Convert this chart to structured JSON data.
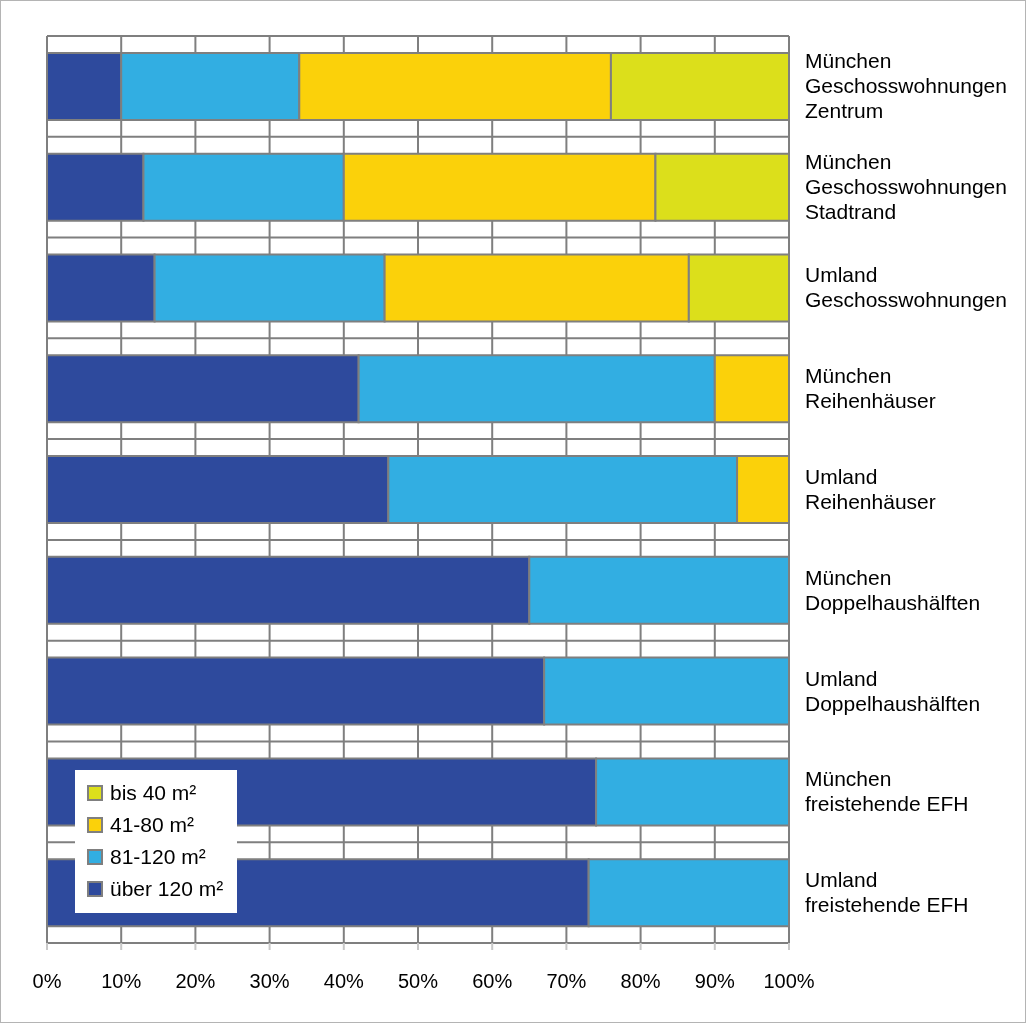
{
  "chart_data": {
    "type": "bar",
    "orientation": "horizontal",
    "stacked": true,
    "categories": [
      "München\nGeschosswohnungen\nZentrum",
      "München\nGeschosswohnungen\nStadtrand",
      "Umland\nGeschosswohnungen",
      "München\nReihenhäuser",
      "Umland\nReihenhäuser",
      "München\nDoppelhaushälften",
      "Umland\nDoppelhaushälften",
      "München\nfreistehende EFH",
      "Umland\nfreistehende EFH"
    ],
    "series": [
      {
        "name": "über 120 m²",
        "color": "#2e4a9d",
        "values": [
          10,
          13,
          14.5,
          42,
          46,
          65,
          67,
          74,
          73
        ]
      },
      {
        "name": "81-120 m²",
        "color": "#32aee2",
        "values": [
          24,
          27,
          31,
          48,
          47,
          35,
          33,
          26,
          27
        ]
      },
      {
        "name": "41-80 m²",
        "color": "#fbd10a",
        "values": [
          42,
          42,
          41,
          10,
          7,
          0,
          0,
          0,
          0
        ]
      },
      {
        "name": "bis 40 m²",
        "color": "#dcdf1b",
        "values": [
          24,
          18,
          13.5,
          0,
          0,
          0,
          0,
          0,
          0
        ]
      }
    ],
    "xlim": [
      0,
      100
    ],
    "xticks": [
      {
        "value": 0,
        "label": "0%"
      },
      {
        "value": 10,
        "label": "10%"
      },
      {
        "value": 20,
        "label": "20%"
      },
      {
        "value": 30,
        "label": "30%"
      },
      {
        "value": 40,
        "label": "40%"
      },
      {
        "value": 50,
        "label": "50%"
      },
      {
        "value": 60,
        "label": "60%"
      },
      {
        "value": 70,
        "label": "70%"
      },
      {
        "value": 80,
        "label": "80%"
      },
      {
        "value": 90,
        "label": "90%"
      },
      {
        "value": 100,
        "label": "100%"
      }
    ],
    "grid": true,
    "legend": "bottom left"
  }
}
